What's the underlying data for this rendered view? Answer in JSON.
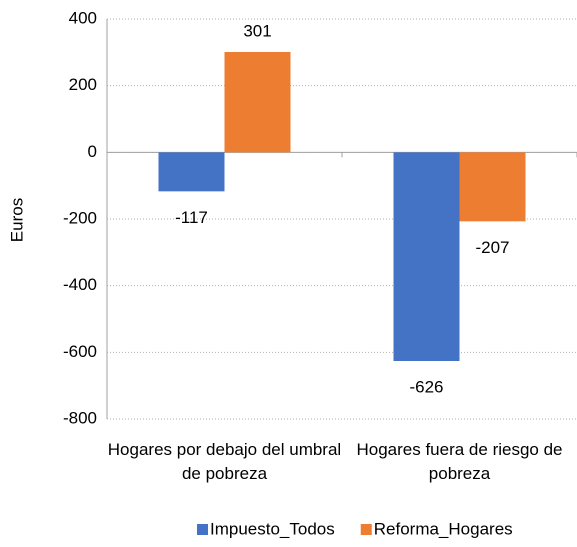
{
  "chart_data": {
    "type": "bar",
    "y_label": "Euros",
    "categories": [
      "Hogares por debajo del umbral de pobreza",
      "Hogares fuera de riesgo de pobreza"
    ],
    "series": [
      {
        "name": "Impuesto_Todos",
        "color": "#4472c4",
        "values": [
          -117,
          -626
        ]
      },
      {
        "name": "Reforma_Hogares",
        "color": "#ed7d31",
        "values": [
          301,
          -207
        ]
      }
    ],
    "ylim": [
      -800,
      400
    ],
    "yticks": [
      -800,
      -600,
      -400,
      -200,
      0,
      200,
      400
    ],
    "grid": true,
    "legend": "bottom"
  }
}
